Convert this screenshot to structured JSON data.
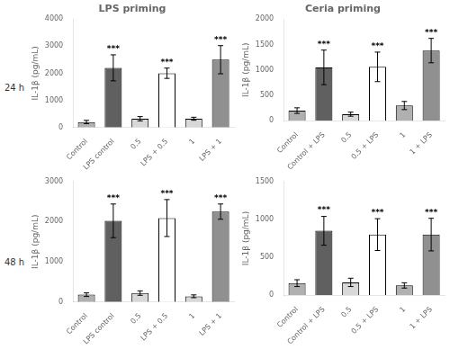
{
  "chart_data": [
    {
      "type": "bar",
      "title": "LPS priming",
      "row_label": "24 h",
      "ylabel": "IL-1β (pg/mL)",
      "categories": [
        "Control",
        "LPS control",
        "0.5",
        "LPS + 0.5",
        "1",
        "LPS + 1"
      ],
      "values": [
        200,
        2200,
        320,
        2000,
        320,
        2500
      ],
      "errors": [
        60,
        480,
        80,
        190,
        55,
        520
      ],
      "annotations": [
        {
          "x": "LPS control",
          "text": "***"
        },
        {
          "x": "LPS + 0.5",
          "text": "***"
        },
        {
          "x": "LPS + 1",
          "text": "***"
        }
      ],
      "colors": [
        "#b0b0b0",
        "#606060",
        "#d8d8d8",
        "#ffffff",
        "#d8d8d8",
        "#909090"
      ],
      "ylim": [
        0,
        4000
      ],
      "yticks": [
        0,
        1000,
        2000,
        3000,
        4000
      ],
      "grid": false
    },
    {
      "type": "bar",
      "title": "Ceria priming",
      "ylabel": "IL-1β (pg/mL)",
      "categories": [
        "Control",
        "Control + LPS",
        "0.5",
        "0.5 + LPS",
        "1",
        "1 + LPS"
      ],
      "values": [
        200,
        1050,
        130,
        1060,
        300,
        1380
      ],
      "errors": [
        55,
        340,
        40,
        290,
        80,
        240
      ],
      "annotations": [
        {
          "x": "Control + LPS",
          "text": "***"
        },
        {
          "x": "0.5 + LPS",
          "text": "***"
        },
        {
          "x": "1 + LPS",
          "text": "***"
        }
      ],
      "colors": [
        "#b0b0b0",
        "#606060",
        "#d8d8d8",
        "#ffffff",
        "#b0b0b0",
        "#909090"
      ],
      "ylim": [
        0,
        2000
      ],
      "yticks": [
        0,
        500,
        1000,
        1500,
        2000
      ],
      "grid": false
    },
    {
      "type": "bar",
      "row_label": "48 h",
      "ylabel": "IL-1β (pg/mL)",
      "categories": [
        "Control",
        "LPS control",
        "0.5",
        "LPS + 0.5",
        "1",
        "LPS + 1"
      ],
      "values": [
        180,
        2020,
        220,
        2090,
        140,
        2250
      ],
      "errors": [
        45,
        420,
        55,
        460,
        35,
        190
      ],
      "annotations": [
        {
          "x": "LPS control",
          "text": "***"
        },
        {
          "x": "LPS + 0.5",
          "text": "***"
        },
        {
          "x": "LPS + 1",
          "text": "***"
        }
      ],
      "colors": [
        "#b0b0b0",
        "#606060",
        "#d8d8d8",
        "#ffffff",
        "#d8d8d8",
        "#909090"
      ],
      "ylim": [
        0,
        3000
      ],
      "yticks": [
        0,
        1000,
        2000,
        3000
      ],
      "grid": false
    },
    {
      "type": "bar",
      "ylabel": "IL-1β (pg/mL)",
      "categories": [
        "Control",
        "Control + LPS",
        "0.5",
        "0.5 + LPS",
        "1",
        "1 + LPS"
      ],
      "values": [
        160,
        850,
        170,
        800,
        130,
        800
      ],
      "errors": [
        45,
        190,
        55,
        210,
        35,
        215
      ],
      "annotations": [
        {
          "x": "Control + LPS",
          "text": "***"
        },
        {
          "x": "0.5 + LPS",
          "text": "***"
        },
        {
          "x": "1 + LPS",
          "text": "***"
        }
      ],
      "colors": [
        "#b0b0b0",
        "#606060",
        "#d8d8d8",
        "#ffffff",
        "#b0b0b0",
        "#909090"
      ],
      "ylim": [
        0,
        1500
      ],
      "yticks": [
        0,
        500,
        1000,
        1500
      ],
      "grid": false
    }
  ]
}
